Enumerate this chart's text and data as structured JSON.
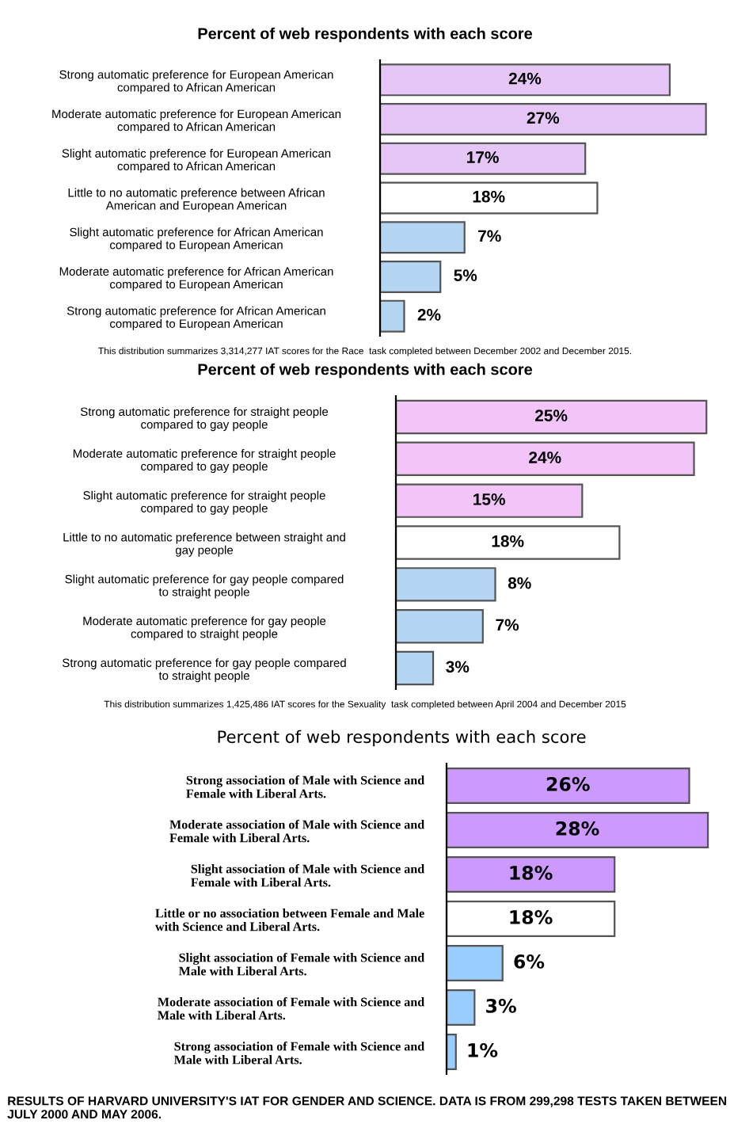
{
  "chart_data": [
    {
      "type": "bar",
      "orientation": "horizontal",
      "title": "Percent of web respondents with each score",
      "tick_labels": "y",
      "grid": false,
      "legend": false,
      "categories": [
        "Strong automatic preference for European American\ncompared to African American",
        "Moderate automatic preference for European American\ncompared to African American",
        "Slight automatic preference for European American\ncompared to African American",
        "Little to no automatic preference between African\nAmerican and European American",
        "Slight automatic preference for African American\ncompared to European American",
        "Moderate automatic preference for African American\ncompared to European American",
        "Strong automatic preference for African American\ncompared to European American"
      ],
      "values": [
        24,
        27,
        17,
        18,
        7,
        5,
        2
      ],
      "value_labels": [
        "24%",
        "27%",
        "17%",
        "18%",
        "7%",
        "5%",
        "2%"
      ],
      "colors": [
        "#e6c6f7",
        "#e6c6f7",
        "#e6c6f7",
        "#ffffff",
        "#b4d6f2",
        "#b4d6f2",
        "#b4d6f2"
      ],
      "annotations": [
        "This distribution summarizes 3,314,277 IAT scores for the Race  task completed between December 2002 and December 2015."
      ]
    },
    {
      "type": "bar",
      "orientation": "horizontal",
      "title": "Percent of web respondents with each score",
      "tick_labels": "y",
      "grid": false,
      "legend": false,
      "categories": [
        "Strong automatic preference for straight people\ncompared to gay people",
        "Moderate automatic preference for straight people\ncompared to gay people",
        "Slight automatic preference for straight people\ncompared to gay people",
        "Little to no automatic preference between straight and\ngay people",
        "Slight automatic preference for gay people compared\nto straight people",
        "Moderate automatic preference for gay people\ncompared to straight people",
        "Strong automatic preference for gay people compared\nto straight people"
      ],
      "values": [
        25,
        24,
        15,
        18,
        8,
        7,
        3
      ],
      "value_labels": [
        "25%",
        "24%",
        "15%",
        "18%",
        "8%",
        "7%",
        "3%"
      ],
      "colors": [
        "#f2c4f7",
        "#f2c4f7",
        "#f2c4f7",
        "#ffffff",
        "#b4d6f2",
        "#b4d6f2",
        "#b4d6f2"
      ],
      "annotations": [
        "This distribution summarizes 1,425,486 IAT scores for the Sexuality  task completed between April 2004 and December 2015"
      ]
    },
    {
      "type": "bar",
      "orientation": "horizontal",
      "title": "Percent of web respondents with each score",
      "tick_labels": "y",
      "grid": false,
      "legend": false,
      "categories": [
        "Strong association of Male with Science and\nFemale with Liberal Arts.",
        "Moderate association of Male with Science and\nFemale with Liberal Arts.",
        "Slight association of Male with Science and\nFemale with Liberal Arts.",
        "Little or no association between Female and Male\nwith Science and Liberal Arts.",
        "Slight association of Female with Science and\nMale with Liberal Arts.",
        "Moderate association of Female with Science and\nMale with Liberal Arts.",
        "Strong association of Female with Science and\nMale with Liberal Arts."
      ],
      "values": [
        26,
        28,
        18,
        18,
        6,
        3,
        1
      ],
      "value_labels": [
        "26%",
        "28%",
        "18%",
        "18%",
        "6%",
        "3%",
        "1%"
      ],
      "colors": [
        "#cc99ff",
        "#cc99ff",
        "#cc99ff",
        "#ffffff",
        "#99ccff",
        "#99ccff",
        "#99ccff"
      ],
      "annotations": [
        "RESULTS OF HARVARD UNIVERSITY'S IAT FOR GENDER AND SCIENCE. DATA IS FROM 299,298 TESTS TAKEN BETWEEN JULY 2000 AND MAY 2006."
      ]
    }
  ]
}
